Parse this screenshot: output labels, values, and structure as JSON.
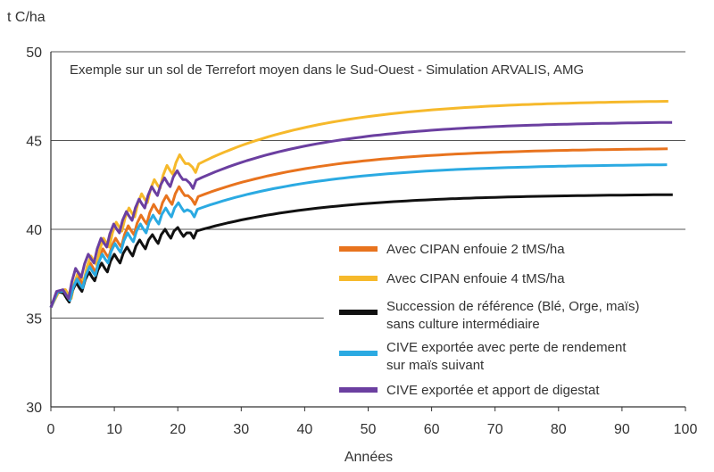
{
  "chart_data": {
    "type": "line",
    "ylabel": "t C/ha",
    "xlabel": "Années",
    "annotation": "Exemple sur un sol de Terrefort moyen dans le Sud-Ouest - Simulation ARVALIS, AMG",
    "xlim": [
      0,
      100
    ],
    "ylim": [
      30,
      50
    ],
    "x_ticks": [
      "0",
      "10",
      "20",
      "30",
      "40",
      "50",
      "60",
      "70",
      "80",
      "90",
      "100"
    ],
    "y_ticks": [
      "50",
      "45",
      "40",
      "35",
      "30"
    ],
    "grid": "horizontal",
    "legend_position": "right-lower",
    "series": [
      {
        "name": "Avec CIPAN enfouie 2 tMS/ha",
        "color": "#E8731E",
        "start": 35.6,
        "shift": 0.2,
        "sawtooth": [
          [
            2,
            36.6
          ],
          [
            4,
            37.4
          ],
          [
            6,
            38.1
          ],
          [
            8,
            38.9
          ],
          [
            10,
            39.5
          ],
          [
            12,
            40.2
          ],
          [
            14,
            40.8
          ],
          [
            16,
            41.4
          ],
          [
            18,
            41.9
          ],
          [
            20,
            42.4
          ],
          [
            22,
            41.7
          ]
        ],
        "plateau": 44.6
      },
      {
        "name": "Avec CIPAN enfouie 4 tMS/ha",
        "color": "#F6B92B",
        "start": 35.6,
        "shift": 0.3,
        "sawtooth": [
          [
            2,
            36.6
          ],
          [
            4,
            37.6
          ],
          [
            6,
            38.5
          ],
          [
            8,
            39.5
          ],
          [
            10,
            40.4
          ],
          [
            12,
            41.2
          ],
          [
            14,
            42.0
          ],
          [
            16,
            42.8
          ],
          [
            18,
            43.6
          ],
          [
            20,
            44.2
          ],
          [
            22,
            43.5
          ]
        ],
        "plateau": 47.3
      },
      {
        "name": "Succession de référence (Blé, Orge, maïs) sans culture intermédiaire",
        "color": "#111111",
        "start": 35.6,
        "shift": 0.0,
        "sawtooth": [
          [
            2,
            36.4
          ],
          [
            4,
            37.0
          ],
          [
            6,
            37.6
          ],
          [
            8,
            38.1
          ],
          [
            10,
            38.6
          ],
          [
            12,
            39.0
          ],
          [
            14,
            39.4
          ],
          [
            16,
            39.7
          ],
          [
            18,
            40.0
          ],
          [
            20,
            40.1
          ],
          [
            22,
            39.8
          ]
        ],
        "plateau": 42.0
      },
      {
        "name": "CIVE exportée avec perte de rendement sur maïs suivant",
        "color": "#2BAAE2",
        "start": 35.6,
        "shift": 0.1,
        "sawtooth": [
          [
            2,
            36.5
          ],
          [
            4,
            37.2
          ],
          [
            6,
            37.9
          ],
          [
            8,
            38.6
          ],
          [
            10,
            39.2
          ],
          [
            12,
            39.8
          ],
          [
            14,
            40.3
          ],
          [
            16,
            40.8
          ],
          [
            18,
            41.2
          ],
          [
            20,
            41.5
          ],
          [
            22,
            41.0
          ]
        ],
        "plateau": 43.7
      },
      {
        "name": "CIVE exportée et apport de digestat",
        "color": "#6B3FA0",
        "start": 35.6,
        "shift": -0.1,
        "sawtooth": [
          [
            2,
            36.6
          ],
          [
            4,
            37.8
          ],
          [
            6,
            38.6
          ],
          [
            8,
            39.5
          ],
          [
            10,
            40.3
          ],
          [
            12,
            41.0
          ],
          [
            14,
            41.7
          ],
          [
            16,
            42.4
          ],
          [
            18,
            42.9
          ],
          [
            20,
            43.3
          ],
          [
            22,
            42.6
          ]
        ],
        "plateau": 46.1
      }
    ]
  }
}
